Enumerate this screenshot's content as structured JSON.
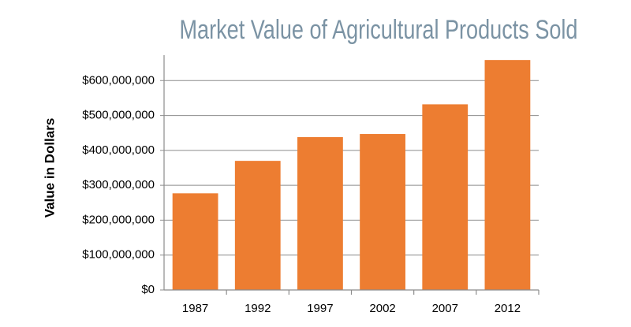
{
  "chart_data": {
    "type": "bar",
    "title": "Market Value of Agricultural Products Sold",
    "y_label": "Value in Dollars",
    "categories": [
      "1987",
      "1992",
      "1997",
      "2002",
      "2007",
      "2012"
    ],
    "values": [
      277000000,
      370000000,
      438000000,
      447000000,
      532000000,
      659000000
    ],
    "color": "#ed7d31",
    "ylim": [
      0,
      700000000
    ],
    "yticks": [
      {
        "value": 0,
        "label": "$0"
      },
      {
        "value": 100000000,
        "label": "$100,000,000"
      },
      {
        "value": 200000000,
        "label": "$200,000,000"
      },
      {
        "value": 300000000,
        "label": "$300,000,000"
      },
      {
        "value": 400000000,
        "label": "$400,000,000"
      },
      {
        "value": 500000000,
        "label": "$500,000,000"
      },
      {
        "value": 600000000,
        "label": "$600,000,000"
      }
    ],
    "grid": true
  }
}
